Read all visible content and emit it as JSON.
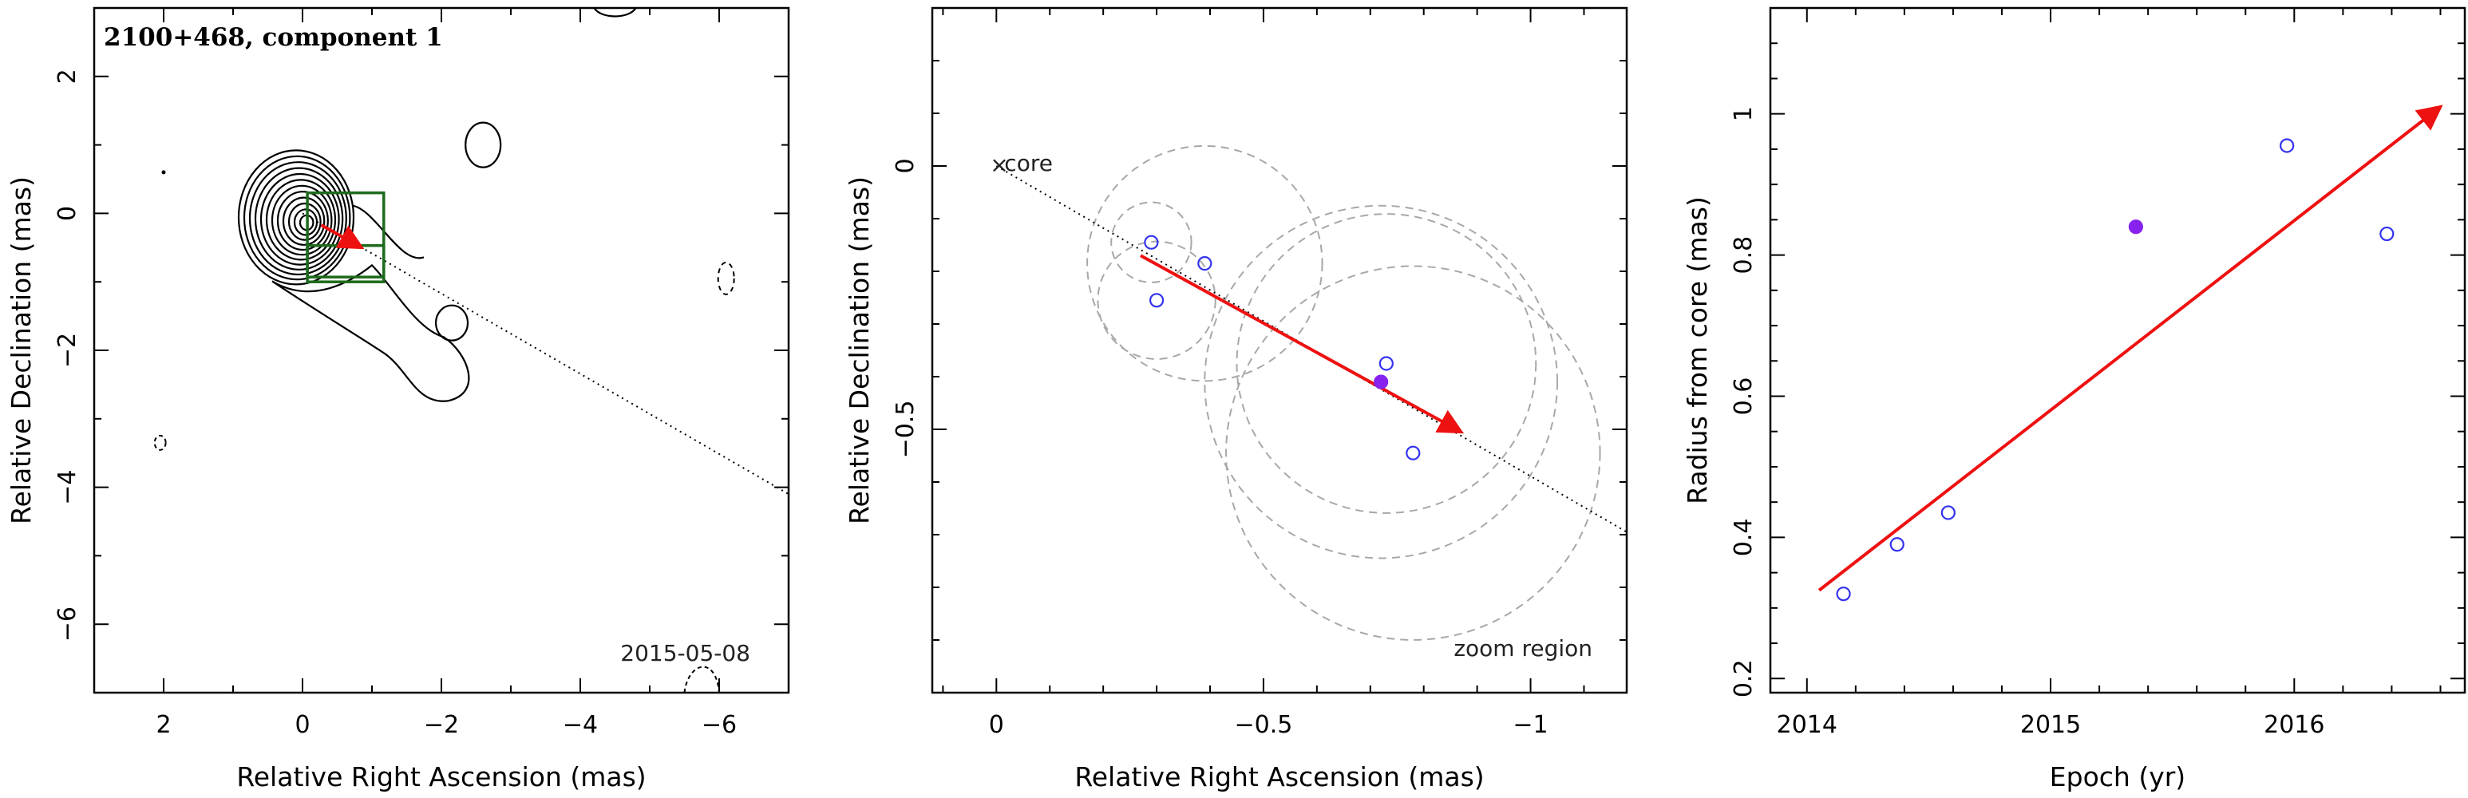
{
  "colors": {
    "arrow": "#ee1111",
    "marker_open": "#3333ee",
    "marker_filled": "#8822ee",
    "box": "#1e6b1e",
    "circle": "#a8a8a8"
  },
  "chart_data": [
    {
      "type": "contour",
      "title": "2100+468, component 1",
      "date_label": "2015-05-08",
      "xlabel": "Relative Right Ascension (mas)",
      "ylabel": "Relative Declination (mas)",
      "xlim": [
        3.0,
        -7.0
      ],
      "ylim": [
        -7.0,
        3.0
      ],
      "xticks": [
        2,
        0,
        -2,
        -4,
        -6
      ],
      "yticks": [
        2,
        0,
        -2,
        -4,
        -6
      ],
      "xticklabels": [
        "2",
        "0",
        "−2",
        "−4",
        "−6"
      ],
      "yticklabels": [
        "2",
        "0",
        "−2",
        "−4",
        "−6"
      ],
      "core": [
        0.0,
        0.0
      ],
      "position_angle_line": {
        "from": [
          0.0,
          0.0
        ],
        "to": [
          -7.0,
          -4.1
        ]
      },
      "zoom_boxes": [
        {
          "x": [
            -1.17,
            -0.07
          ],
          "y": [
            -0.93,
            0.3
          ]
        },
        {
          "x": [
            -1.17,
            -0.07
          ],
          "y": [
            -1.0,
            -0.47
          ]
        }
      ],
      "motion_arrow": {
        "from": [
          -0.27,
          -0.17
        ],
        "to": [
          -0.85,
          -0.5
        ]
      }
    },
    {
      "type": "scatter",
      "xlabel": "Relative Right Ascension (mas)",
      "ylabel": "Relative Declination (mas)",
      "xlim": [
        0.12,
        -1.18
      ],
      "ylim": [
        -1.0,
        0.3
      ],
      "xticks": [
        0,
        -0.5,
        -1
      ],
      "yticks": [
        0,
        -0.5
      ],
      "xticklabels": [
        "0",
        "−0.5",
        "−1"
      ],
      "yticklabels": [
        "0",
        "−0.5"
      ],
      "core_label": "core",
      "zoom_label": "zoom region",
      "points": [
        {
          "x": -0.29,
          "y": -0.145,
          "filled": false
        },
        {
          "x": -0.3,
          "y": -0.255,
          "filled": false
        },
        {
          "x": -0.39,
          "y": -0.185,
          "filled": false
        },
        {
          "x": -0.73,
          "y": -0.375,
          "filled": false
        },
        {
          "x": -0.78,
          "y": -0.545,
          "filled": false
        },
        {
          "x": -0.72,
          "y": -0.41,
          "filled": true
        }
      ],
      "circles": [
        {
          "x": -0.29,
          "y": -0.145,
          "r": 0.075
        },
        {
          "x": -0.3,
          "y": -0.255,
          "r": 0.11
        },
        {
          "x": -0.39,
          "y": -0.185,
          "r": 0.22
        },
        {
          "x": -0.73,
          "y": -0.375,
          "r": 0.28
        },
        {
          "x": -0.78,
          "y": -0.545,
          "r": 0.35
        },
        {
          "x": -0.72,
          "y": -0.41,
          "r": 0.33
        }
      ],
      "position_angle_line": {
        "from": [
          0.0,
          0.0
        ],
        "to": [
          -1.18,
          -0.695
        ]
      },
      "motion_arrow": {
        "from": [
          -0.27,
          -0.17
        ],
        "to": [
          -0.87,
          -0.505
        ]
      }
    },
    {
      "type": "scatter",
      "xlabel": "Epoch (yr)",
      "ylabel": "Radius from core (mas)",
      "xlim": [
        2013.85,
        2016.7
      ],
      "ylim": [
        0.18,
        1.15
      ],
      "xticks": [
        2014,
        2015,
        2016
      ],
      "yticks": [
        0.2,
        0.4,
        0.6,
        0.8,
        1.0
      ],
      "xticklabels": [
        "2014",
        "2015",
        "2016"
      ],
      "yticklabels": [
        "0.2",
        "0.4",
        "0.6",
        "0.8",
        "1"
      ],
      "points": [
        {
          "x": 2014.15,
          "y": 0.32,
          "filled": false
        },
        {
          "x": 2014.37,
          "y": 0.39,
          "filled": false
        },
        {
          "x": 2014.58,
          "y": 0.435,
          "filled": false
        },
        {
          "x": 2015.35,
          "y": 0.84,
          "filled": true
        },
        {
          "x": 2015.97,
          "y": 0.955,
          "filled": false
        },
        {
          "x": 2016.38,
          "y": 0.83,
          "filled": false
        }
      ],
      "fit_arrow": {
        "from": [
          2014.05,
          0.325
        ],
        "to": [
          2016.6,
          1.01
        ]
      }
    }
  ]
}
